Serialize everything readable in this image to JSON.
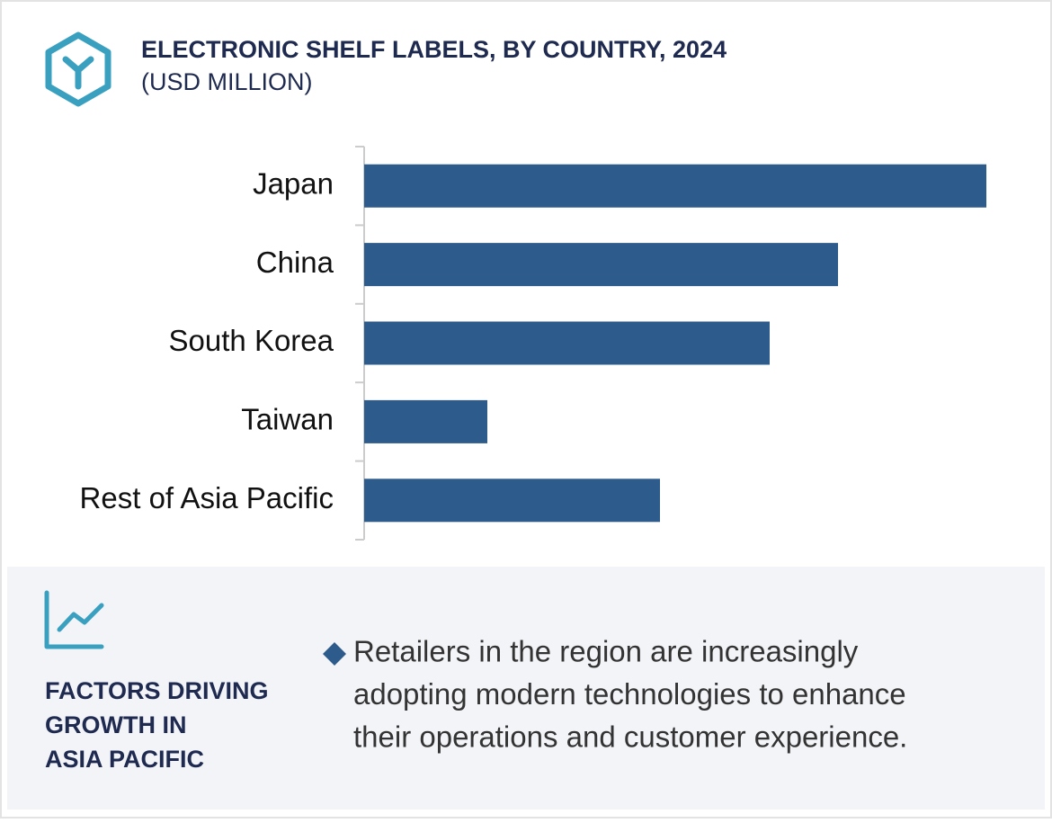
{
  "chart_data": {
    "type": "hbar",
    "title": "ELECTRONIC SHELF LABELS, BY COUNTRY, 2024",
    "subtitle": "(USD MILLION)",
    "categories": [
      "Japan",
      "China",
      "South Korea",
      "Taiwan",
      "Rest of Asia Pacific"
    ],
    "values": [
      692,
      527,
      451,
      137,
      329
    ],
    "color": "#2d5b8b",
    "xlim": [
      0,
      700
    ]
  },
  "panel": {
    "heading": [
      "FACTORS DRIVING",
      "GROWTH IN",
      "ASIA PACIFIC"
    ],
    "bullet": [
      "Retailers in the region are increasingly",
      "adopting modern technologies to enhance",
      "their operations and customer experience."
    ]
  }
}
